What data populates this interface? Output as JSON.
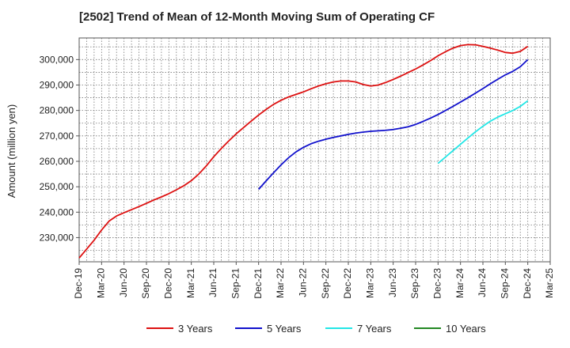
{
  "chart_data": {
    "type": "line",
    "title": "[2502]  Trend of Mean of 12-Month Moving Sum of Operating CF",
    "xlabel": "",
    "ylabel": "Amount (million yen)",
    "x_ticks": [
      "Dec-19",
      "Mar-20",
      "Jun-20",
      "Sep-20",
      "Dec-20",
      "Mar-21",
      "Jun-21",
      "Sep-21",
      "Dec-21",
      "Mar-22",
      "Jun-22",
      "Sep-22",
      "Dec-22",
      "Mar-23",
      "Jun-23",
      "Sep-23",
      "Dec-23",
      "Mar-24",
      "Jun-24",
      "Sep-24",
      "Dec-24",
      "Mar-25"
    ],
    "y_ticks": [
      230000,
      240000,
      250000,
      260000,
      270000,
      280000,
      290000,
      300000
    ],
    "y_tick_labels": [
      "230,000",
      "240,000",
      "250,000",
      "260,000",
      "270,000",
      "280,000",
      "290,000",
      "300,000"
    ],
    "ylim": [
      220500,
      308500
    ],
    "grid": true,
    "legend_position": "bottom",
    "series": [
      {
        "name": "3 Years",
        "color": "#dd1111",
        "x": [
          "Dec-19",
          "Jan-20",
          "Feb-20",
          "Mar-20",
          "Apr-20",
          "May-20",
          "Jun-20",
          "Jul-20",
          "Aug-20",
          "Sep-20",
          "Oct-20",
          "Nov-20",
          "Dec-20",
          "Jan-21",
          "Feb-21",
          "Mar-21",
          "Apr-21",
          "May-21",
          "Jun-21",
          "Jul-21",
          "Aug-21",
          "Sep-21",
          "Oct-21",
          "Nov-21",
          "Dec-21",
          "Jan-22",
          "Feb-22",
          "Mar-22",
          "Apr-22",
          "May-22",
          "Jun-22",
          "Jul-22",
          "Aug-22",
          "Sep-22",
          "Oct-22",
          "Nov-22",
          "Dec-22",
          "Jan-23",
          "Feb-23",
          "Mar-23",
          "Apr-23",
          "May-23",
          "Jun-23",
          "Jul-23",
          "Aug-23",
          "Sep-23",
          "Oct-23",
          "Nov-23",
          "Dec-23",
          "Jan-24",
          "Feb-24",
          "Mar-24",
          "Apr-24",
          "May-24",
          "Jun-24",
          "Jul-24",
          "Aug-24",
          "Sep-24",
          "Oct-24",
          "Nov-24",
          "Dec-24"
        ],
        "values": [
          222000,
          225500,
          229000,
          233000,
          236500,
          238500,
          239800,
          241000,
          242200,
          243500,
          244800,
          246000,
          247300,
          248800,
          250400,
          252400,
          255000,
          258200,
          261800,
          265000,
          268000,
          270800,
          273300,
          275800,
          278200,
          280400,
          282400,
          284000,
          285300,
          286300,
          287300,
          288500,
          289600,
          290500,
          291200,
          291600,
          291600,
          291200,
          290200,
          289600,
          290000,
          291000,
          292200,
          293500,
          294900,
          296300,
          297900,
          299600,
          301500,
          303100,
          304500,
          305500,
          305900,
          305800,
          305200,
          304500,
          303700,
          302800,
          302500,
          303200,
          305200
        ]
      },
      {
        "name": "5 Years",
        "color": "#1111cc",
        "x": [
          "Dec-21",
          "Jan-22",
          "Feb-22",
          "Mar-22",
          "Apr-22",
          "May-22",
          "Jun-22",
          "Jul-22",
          "Aug-22",
          "Sep-22",
          "Oct-22",
          "Nov-22",
          "Dec-22",
          "Jan-23",
          "Feb-23",
          "Mar-23",
          "Apr-23",
          "May-23",
          "Jun-23",
          "Jul-23",
          "Aug-23",
          "Sep-23",
          "Oct-23",
          "Nov-23",
          "Dec-23",
          "Jan-24",
          "Feb-24",
          "Mar-24",
          "Apr-24",
          "May-24",
          "Jun-24",
          "Jul-24",
          "Aug-24",
          "Sep-24",
          "Oct-24",
          "Nov-24",
          "Dec-24"
        ],
        "values": [
          249000,
          252300,
          255500,
          258600,
          261400,
          263700,
          265500,
          266900,
          267900,
          268700,
          269400,
          270000,
          270600,
          271100,
          271500,
          271800,
          272000,
          272200,
          272500,
          273000,
          273600,
          274500,
          275700,
          277000,
          278400,
          280000,
          281600,
          283300,
          285000,
          286800,
          288600,
          290500,
          292300,
          294000,
          295400,
          297200,
          300000
        ]
      },
      {
        "name": "7 Years",
        "color": "#22e6e6",
        "x": [
          "Dec-23",
          "Jan-24",
          "Feb-24",
          "Mar-24",
          "Apr-24",
          "May-24",
          "Jun-24",
          "Jul-24",
          "Aug-24",
          "Sep-24",
          "Oct-24",
          "Nov-24",
          "Dec-24"
        ],
        "values": [
          259200,
          261700,
          264200,
          266700,
          269200,
          271600,
          273800,
          275800,
          277400,
          278700,
          280000,
          281600,
          283800
        ]
      },
      {
        "name": "10 Years",
        "color": "#228822",
        "x": [],
        "values": []
      }
    ]
  }
}
